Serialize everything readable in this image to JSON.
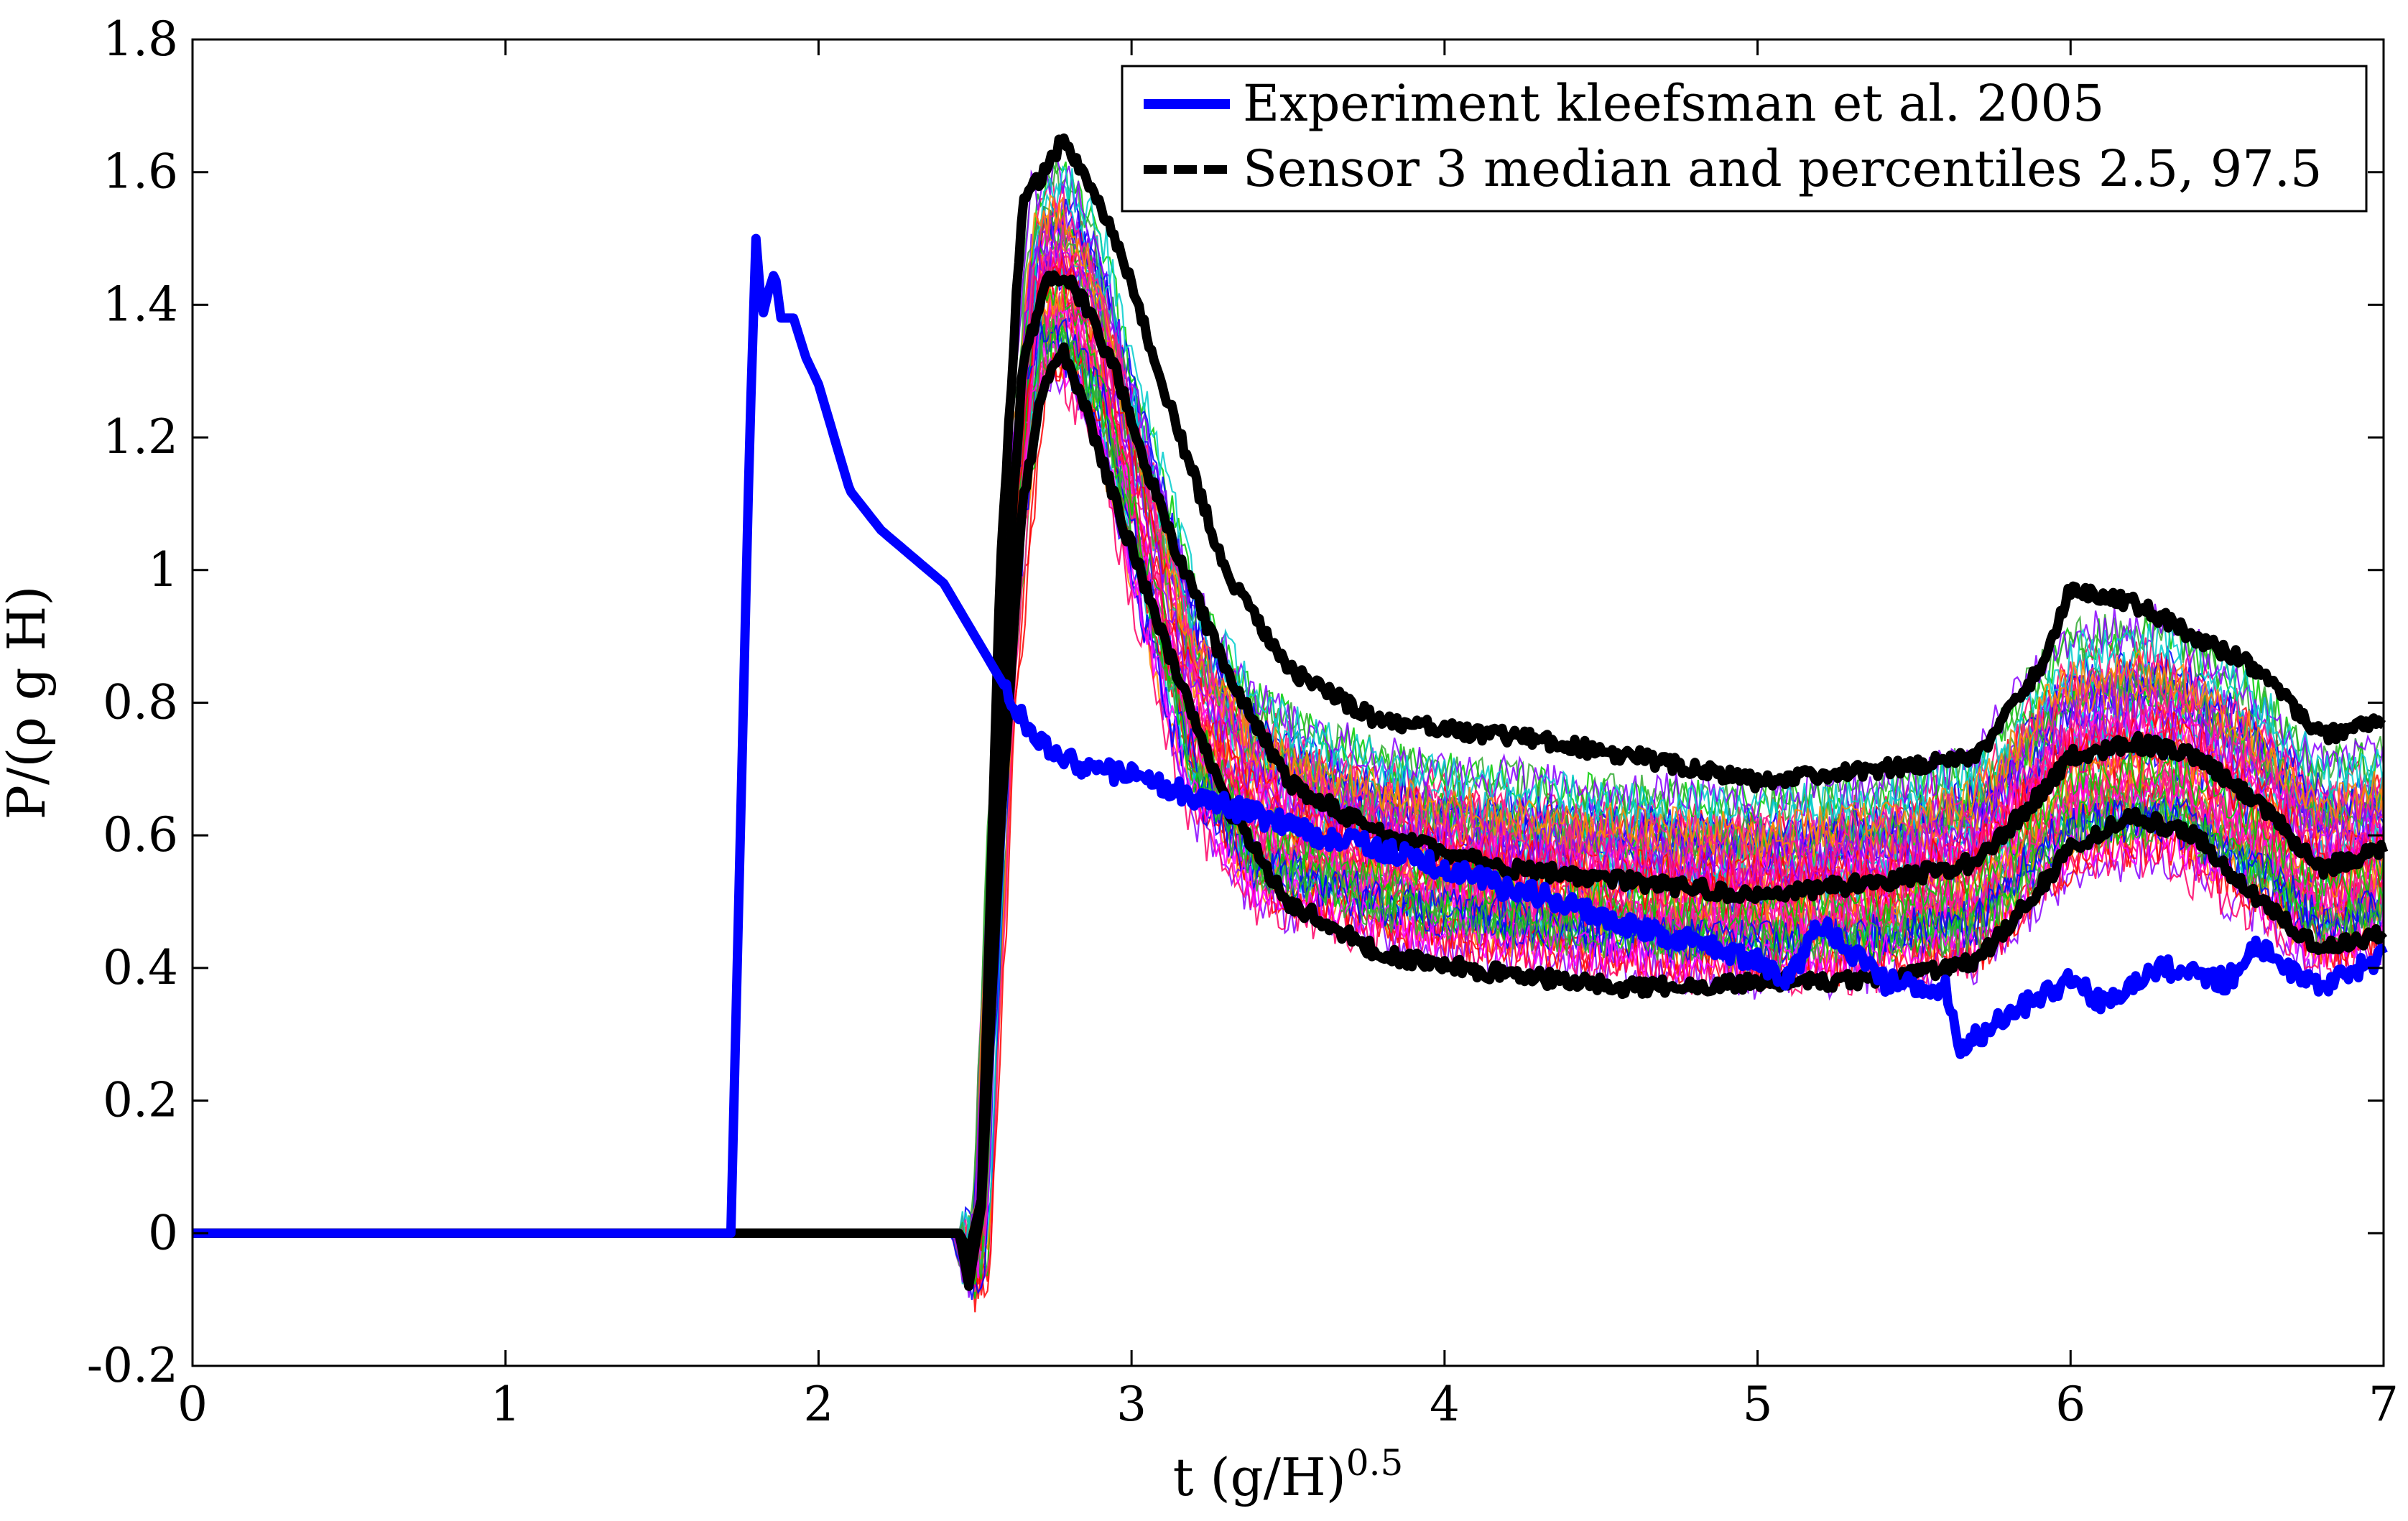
{
  "chart_data": {
    "type": "line",
    "title": "",
    "xlabel": "t (g/H)",
    "xlabel_sup": "0.5",
    "ylabel": "P/(ρ g H)",
    "xlim": [
      0,
      7
    ],
    "ylim": [
      -0.2,
      1.8
    ],
    "xticks": [
      0,
      1,
      2,
      3,
      4,
      5,
      6,
      7
    ],
    "xtick_labels": [
      "0",
      "1",
      "2",
      "3",
      "4",
      "5",
      "6",
      "7"
    ],
    "yticks": [
      -0.2,
      0,
      0.2,
      0.4,
      0.6,
      0.8,
      1,
      1.2,
      1.4,
      1.6,
      1.8
    ],
    "ytick_labels": [
      "-0.2",
      "0",
      "0.2",
      "0.4",
      "0.6",
      "0.8",
      "1",
      "1.2",
      "1.4",
      "1.6",
      "1.8"
    ],
    "grid": false,
    "legend_position": "top-right",
    "ensemble_colors": [
      "#ff0000",
      "#00cc00",
      "#0000ff",
      "#ff00ff",
      "#00cccc",
      "#ff8800",
      "#8800ff",
      "#ff0066",
      "#33aa33",
      "#ff1493"
    ],
    "ensemble_spread_center": [
      [
        0,
        0
      ],
      [
        2.45,
        0
      ],
      [
        2.48,
        -0.05
      ],
      [
        2.52,
        0.0
      ],
      [
        2.6,
        0.9
      ],
      [
        2.7,
        1.42
      ],
      [
        2.78,
        1.45
      ],
      [
        2.9,
        1.35
      ],
      [
        3.0,
        1.15
      ],
      [
        3.2,
        0.8
      ],
      [
        3.4,
        0.65
      ],
      [
        3.8,
        0.58
      ],
      [
        4.2,
        0.55
      ],
      [
        4.6,
        0.53
      ],
      [
        5.0,
        0.52
      ],
      [
        5.4,
        0.53
      ],
      [
        5.7,
        0.56
      ],
      [
        6.0,
        0.72
      ],
      [
        6.3,
        0.74
      ],
      [
        6.6,
        0.65
      ],
      [
        6.8,
        0.55
      ],
      [
        7.0,
        0.58
      ]
    ],
    "ensemble_spread_half_width": [
      [
        0,
        0
      ],
      [
        2.45,
        0
      ],
      [
        2.6,
        0.15
      ],
      [
        2.8,
        0.18
      ],
      [
        3.2,
        0.2
      ],
      [
        3.6,
        0.16
      ],
      [
        4.5,
        0.15
      ],
      [
        5.5,
        0.16
      ],
      [
        6.0,
        0.2
      ],
      [
        6.5,
        0.2
      ],
      [
        7.0,
        0.16
      ]
    ],
    "series": [
      {
        "name": "Experiment kleefsman et al. 2005",
        "color": "#0000ff",
        "style": "solid",
        "x": [
          0,
          0.5,
          1.0,
          1.5,
          1.72,
          1.74,
          1.76,
          1.78,
          1.8,
          1.82,
          1.84,
          1.86,
          1.88,
          1.92,
          1.96,
          2.0,
          2.05,
          2.1,
          2.2,
          2.3,
          2.4,
          2.5,
          2.6,
          2.7,
          2.8,
          3.0,
          3.2,
          3.4,
          3.6,
          3.8,
          4.0,
          4.2,
          4.4,
          4.6,
          4.8,
          5.0,
          5.1,
          5.2,
          5.4,
          5.6,
          5.65,
          5.8,
          6.0,
          6.1,
          6.3,
          6.5,
          6.6,
          6.8,
          7.0
        ],
        "y": [
          0,
          0,
          0,
          0,
          0,
          0.4,
          0.8,
          1.2,
          1.5,
          1.38,
          1.42,
          1.45,
          1.38,
          1.38,
          1.32,
          1.28,
          1.2,
          1.12,
          1.06,
          1.02,
          0.98,
          0.9,
          0.82,
          0.74,
          0.71,
          0.69,
          0.66,
          0.63,
          0.6,
          0.58,
          0.55,
          0.52,
          0.5,
          0.46,
          0.44,
          0.41,
          0.38,
          0.47,
          0.38,
          0.37,
          0.28,
          0.33,
          0.38,
          0.35,
          0.4,
          0.38,
          0.43,
          0.37,
          0.42
        ]
      },
      {
        "name": "Sensor 3 median and percentiles 2.5, 97.5",
        "color": "#000000",
        "style": "dashed",
        "x": [
          0,
          1.0,
          2.0,
          2.45,
          2.48,
          2.52,
          2.58,
          2.65,
          2.72,
          2.78,
          2.85,
          2.95,
          3.1,
          3.3,
          3.5,
          3.8,
          4.2,
          4.6,
          5.0,
          5.4,
          5.7,
          5.9,
          6.0,
          6.2,
          6.4,
          6.6,
          6.8,
          7.0
        ],
        "y": [
          0,
          0,
          0,
          0,
          -0.04,
          0.05,
          0.8,
          1.3,
          1.43,
          1.45,
          1.4,
          1.3,
          1.08,
          0.85,
          0.68,
          0.6,
          0.55,
          0.53,
          0.51,
          0.53,
          0.56,
          0.66,
          0.72,
          0.74,
          0.72,
          0.65,
          0.55,
          0.58
        ]
      },
      {
        "name": "percentile 97.5",
        "color": "#000000",
        "style": "solid",
        "x": [
          0,
          1.0,
          2.0,
          2.45,
          2.48,
          2.52,
          2.58,
          2.65,
          2.72,
          2.78,
          2.85,
          2.95,
          3.1,
          3.3,
          3.5,
          3.8,
          4.2,
          4.6,
          5.0,
          5.4,
          5.7,
          5.9,
          6.0,
          6.2,
          6.4,
          6.6,
          6.8,
          7.0
        ],
        "y": [
          0,
          0,
          0,
          0,
          -0.03,
          0.05,
          1.0,
          1.55,
          1.6,
          1.65,
          1.6,
          1.5,
          1.28,
          1.0,
          0.85,
          0.77,
          0.75,
          0.72,
          0.68,
          0.7,
          0.72,
          0.85,
          0.97,
          0.95,
          0.9,
          0.85,
          0.75,
          0.77
        ]
      },
      {
        "name": "percentile 2.5",
        "color": "#000000",
        "style": "solid",
        "x": [
          0,
          1.0,
          2.0,
          2.45,
          2.48,
          2.52,
          2.58,
          2.65,
          2.72,
          2.78,
          2.85,
          2.95,
          3.1,
          3.3,
          3.5,
          3.8,
          4.2,
          4.6,
          5.0,
          5.4,
          5.7,
          5.9,
          6.0,
          6.2,
          6.4,
          6.6,
          6.8,
          7.0
        ],
        "y": [
          0,
          0,
          0,
          0,
          -0.08,
          0.04,
          0.6,
          1.1,
          1.28,
          1.33,
          1.25,
          1.1,
          0.9,
          0.65,
          0.5,
          0.42,
          0.39,
          0.37,
          0.38,
          0.38,
          0.41,
          0.52,
          0.58,
          0.63,
          0.6,
          0.5,
          0.43,
          0.45
        ]
      }
    ]
  }
}
